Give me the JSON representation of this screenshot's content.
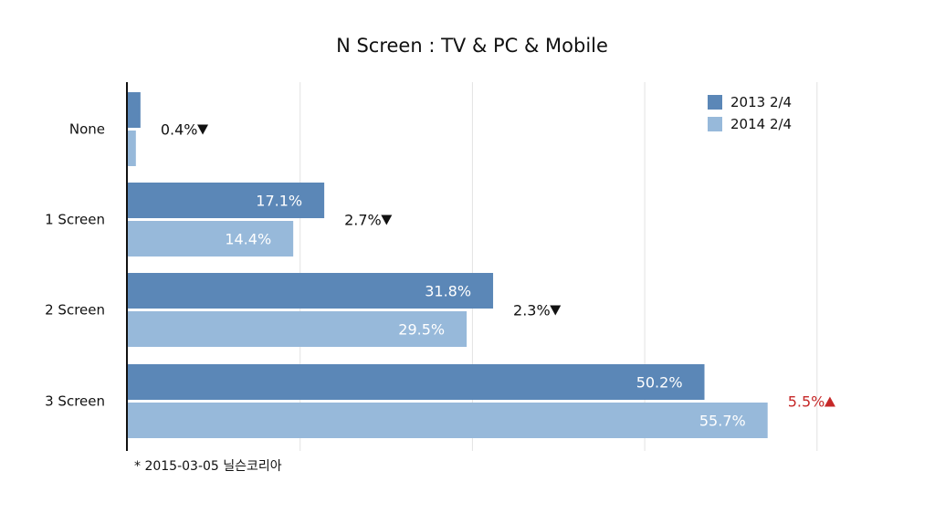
{
  "chart_data": {
    "type": "bar",
    "orientation": "horizontal",
    "title": "N Screen : TV & PC & Mobile",
    "categories": [
      "None",
      "1 Screen",
      "2 Screen",
      "3 Screen"
    ],
    "series": [
      {
        "name": "2013 2/4",
        "color": "#5b87b7",
        "values": [
          1.1,
          17.1,
          31.8,
          50.2
        ],
        "labels": [
          "",
          "17.1%",
          "31.8%",
          "50.2%"
        ]
      },
      {
        "name": "2014 2/4",
        "color": "#97b9da",
        "values": [
          0.7,
          14.4,
          29.5,
          55.7
        ],
        "labels": [
          "",
          "14.4%",
          "29.5%",
          "55.7%"
        ]
      }
    ],
    "changes": [
      {
        "text": "0.4%",
        "direction": "down",
        "color": "#111111"
      },
      {
        "text": "2.7%",
        "direction": "down",
        "color": "#111111"
      },
      {
        "text": "2.3%",
        "direction": "down",
        "color": "#111111"
      },
      {
        "text": "5.5%",
        "direction": "up",
        "color": "#c62828"
      }
    ],
    "xlim": [
      0,
      60
    ],
    "grid": true,
    "legend_position": "top-right",
    "footnote": "* 2015-03-05 닐슨코리아"
  }
}
